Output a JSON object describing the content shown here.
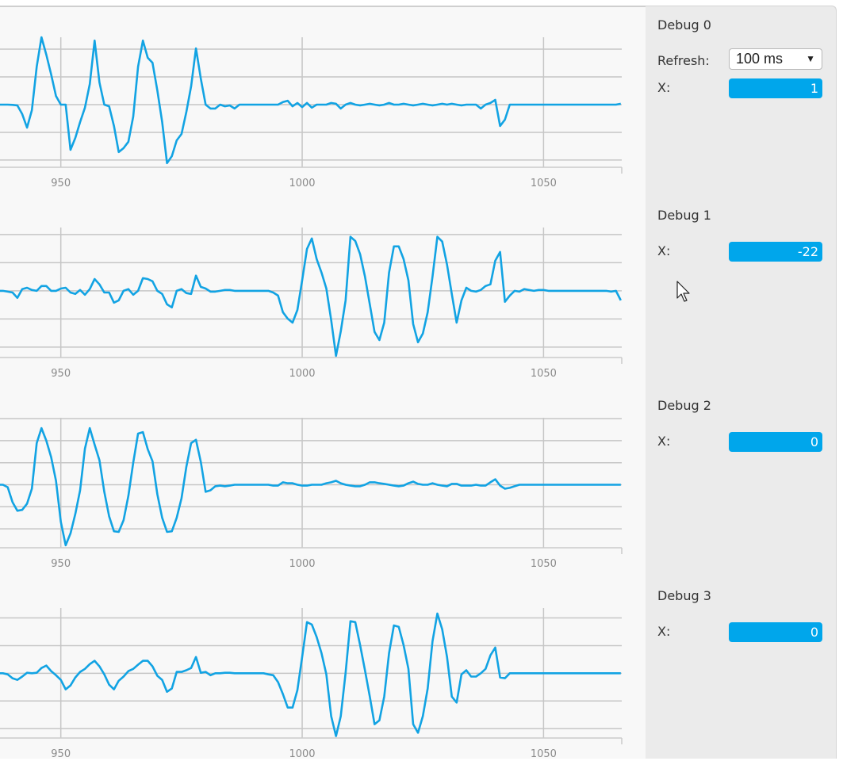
{
  "colors": {
    "line": "#12a3e3",
    "grid": "#c6c6c6",
    "axis_text": "#8a8a8a",
    "value_box": "#00a6eb"
  },
  "sidebar": {
    "refresh_label": "Refresh:",
    "refresh_value": "100 ms",
    "sections": [
      {
        "title": "Debug 0",
        "x_label": "X:",
        "x_value": "1"
      },
      {
        "title": "Debug 1",
        "x_label": "X:",
        "x_value": "-22"
      },
      {
        "title": "Debug 2",
        "x_label": "X:",
        "x_value": "0"
      },
      {
        "title": "Debug 3",
        "x_label": "X:",
        "x_value": "0"
      }
    ]
  },
  "chart_data": [
    {
      "type": "line",
      "title": "Debug 0",
      "x_start": 937,
      "x_step": 1,
      "xlim": [
        937.4,
        1066.2
      ],
      "ylim": [
        -2.26,
        2.43
      ],
      "xticks": [
        950,
        1000,
        1050
      ],
      "yticks": [
        -2,
        -1,
        0,
        1,
        2
      ],
      "values": [
        0,
        0,
        0,
        -0.01,
        -0.03,
        -0.34,
        -0.83,
        -0.2,
        1.37,
        2.43,
        1.8,
        1.09,
        0.31,
        0,
        0,
        -1.63,
        -1.2,
        -0.63,
        -0.11,
        0.74,
        2.31,
        0.8,
        0,
        -0.06,
        -0.77,
        -1.71,
        -1.57,
        -1.34,
        -0.43,
        1.37,
        2.31,
        1.69,
        1.51,
        0.51,
        -0.63,
        -2.11,
        -1.86,
        -1.29,
        -1.06,
        -0.26,
        0.66,
        2.03,
        0.94,
        0,
        -0.14,
        -0.14,
        0,
        -0.06,
        -0.03,
        -0.14,
        0,
        0,
        0,
        0,
        0,
        0,
        0,
        0,
        0,
        0.09,
        0.14,
        -0.06,
        0.06,
        -0.09,
        0.06,
        -0.11,
        0,
        0,
        0,
        0.06,
        0.03,
        -0.14,
        0,
        0.06,
        0,
        -0.03,
        0,
        0.03,
        0,
        -0.03,
        0,
        0.06,
        0,
        0,
        0.03,
        0,
        -0.03,
        0,
        0.03,
        0,
        -0.03,
        0,
        0.03,
        0,
        0.03,
        0,
        -0.03,
        0,
        0,
        0,
        -0.14,
        0,
        0.06,
        0.17,
        -0.77,
        -0.54,
        0,
        0,
        0,
        0,
        0,
        0,
        0,
        0,
        0,
        0,
        0,
        0,
        0,
        0,
        0,
        0,
        0,
        0,
        0,
        0,
        0,
        0,
        0,
        0.03
      ]
    },
    {
      "type": "line",
      "title": "Debug 1",
      "x_start": 937,
      "x_step": 1,
      "xlim": [
        937.4,
        1066.2
      ],
      "ylim": [
        -2.37,
        2.25
      ],
      "xticks": [
        950,
        1000,
        1050
      ],
      "yticks": [
        -2,
        -1,
        0,
        1,
        2
      ],
      "values": [
        0,
        0,
        -0.03,
        -0.06,
        -0.25,
        0.06,
        0.11,
        0.03,
        0,
        0.17,
        0.17,
        0,
        0,
        0.08,
        0.11,
        -0.06,
        -0.11,
        0.03,
        -0.14,
        0.06,
        0.42,
        0.23,
        -0.06,
        -0.06,
        -0.42,
        -0.34,
        0,
        0.06,
        -0.14,
        0,
        0.45,
        0.42,
        0.34,
        0,
        -0.11,
        -0.48,
        -0.59,
        0,
        0.06,
        -0.08,
        -0.11,
        0.54,
        0.14,
        0.08,
        -0.03,
        -0.03,
        0,
        0.03,
        0.03,
        0,
        0,
        0,
        0,
        0,
        0,
        0,
        0,
        -0.06,
        -0.17,
        -0.76,
        -0.99,
        -1.13,
        -0.68,
        0.37,
        1.49,
        1.86,
        1.13,
        0.65,
        0.08,
        -1.04,
        -2.31,
        -1.44,
        -0.34,
        1.92,
        1.77,
        1.3,
        0.51,
        -0.48,
        -1.46,
        -1.75,
        -1.13,
        0.65,
        1.58,
        1.58,
        1.13,
        0.37,
        -1.18,
        -1.83,
        -1.52,
        -0.76,
        0.51,
        1.92,
        1.75,
        0.93,
        -0.11,
        -1.13,
        -0.34,
        0.11,
        0,
        -0.03,
        0.03,
        0.17,
        0.23,
        1.07,
        1.38,
        -0.39,
        -0.17,
        0,
        -0.03,
        0.06,
        0.03,
        0,
        0.03,
        0.03,
        0,
        0,
        0,
        0,
        0,
        0,
        0,
        0,
        0,
        0,
        0,
        0,
        0,
        -0.03,
        0,
        -0.34
      ]
    },
    {
      "type": "line",
      "title": "Debug 2",
      "x_start": 937,
      "x_step": 1,
      "xlim": [
        937.4,
        1066.2
      ],
      "ylim": [
        -2.86,
        3.04
      ],
      "xticks": [
        950,
        1000,
        1050
      ],
      "yticks": [
        -2,
        -1,
        0,
        1,
        2,
        3
      ],
      "values": [
        0,
        0,
        -0.11,
        -0.79,
        -1.18,
        -1.14,
        -0.86,
        -0.18,
        1.89,
        2.57,
        2.0,
        1.25,
        0.18,
        -1.68,
        -2.75,
        -2.21,
        -1.32,
        -0.25,
        1.64,
        2.57,
        1.82,
        1.11,
        -0.32,
        -1.43,
        -2.11,
        -2.14,
        -1.61,
        -0.5,
        1.0,
        2.32,
        2.39,
        1.61,
        1.07,
        -0.43,
        -1.5,
        -2.14,
        -2.11,
        -1.5,
        -0.61,
        0.82,
        1.89,
        2.04,
        1.04,
        -0.32,
        -0.25,
        -0.07,
        -0.04,
        -0.07,
        -0.04,
        0,
        0,
        0,
        0,
        0,
        0,
        0,
        0,
        -0.04,
        -0.04,
        0.11,
        0.07,
        0.07,
        0,
        -0.04,
        -0.04,
        0,
        0,
        0,
        0.07,
        0.11,
        0.18,
        0.07,
        0,
        -0.04,
        -0.07,
        -0.07,
        0,
        0.11,
        0.11,
        0.07,
        0.04,
        0,
        -0.04,
        -0.07,
        -0.04,
        0.07,
        0.14,
        0.04,
        0,
        0,
        0.07,
        0,
        -0.04,
        -0.07,
        0.04,
        0.04,
        -0.04,
        -0.04,
        -0.04,
        0,
        -0.04,
        -0.04,
        0.11,
        0.25,
        -0.04,
        -0.18,
        -0.14,
        -0.07,
        0,
        0,
        0,
        0,
        0,
        0,
        0,
        0,
        0,
        0,
        0,
        0,
        0,
        0,
        0,
        0,
        0,
        0,
        0,
        0,
        0,
        0
      ]
    },
    {
      "type": "line",
      "title": "Debug 3",
      "x_start": 937,
      "x_step": 1,
      "xlim": [
        937.4,
        1066.2
      ],
      "ylim": [
        -2.34,
        2.36
      ],
      "xticks": [
        950,
        1000,
        1050
      ],
      "yticks": [
        -2,
        -1,
        0,
        1,
        2
      ],
      "values": [
        0,
        0,
        -0.04,
        -0.18,
        -0.24,
        -0.12,
        0.02,
        0,
        0.02,
        0.19,
        0.28,
        0.08,
        -0.07,
        -0.24,
        -0.58,
        -0.44,
        -0.15,
        0.05,
        0.16,
        0.33,
        0.45,
        0.25,
        -0.04,
        -0.41,
        -0.58,
        -0.27,
        -0.12,
        0.08,
        0.16,
        0.31,
        0.45,
        0.45,
        0.25,
        -0.09,
        -0.24,
        -0.67,
        -0.55,
        0.05,
        0.05,
        0.11,
        0.19,
        0.59,
        0.02,
        0.05,
        -0.07,
        0,
        0,
        0.02,
        0.02,
        0,
        0,
        0,
        0,
        0,
        0,
        0,
        -0.04,
        -0.07,
        -0.32,
        -0.75,
        -1.24,
        -1.24,
        -0.61,
        0.59,
        1.85,
        1.76,
        1.31,
        0.73,
        -0.04,
        -1.55,
        -2.27,
        -1.55,
        0.02,
        1.88,
        1.85,
        1.02,
        0.11,
        -0.84,
        -1.84,
        -1.7,
        -0.84,
        0.73,
        1.73,
        1.68,
        1.02,
        0.16,
        -1.84,
        -2.15,
        -1.55,
        -0.55,
        1.16,
        2.16,
        1.59,
        0.59,
        -0.84,
        -1.06,
        -0.04,
        0.11,
        -0.12,
        -0.12,
        0,
        0.16,
        0.65,
        0.93,
        -0.15,
        -0.18,
        0,
        0,
        0,
        0,
        0,
        0,
        0,
        0,
        0,
        0,
        0,
        0,
        0,
        0,
        0,
        0,
        0,
        0,
        0,
        0,
        0,
        0,
        0,
        0
      ]
    }
  ]
}
